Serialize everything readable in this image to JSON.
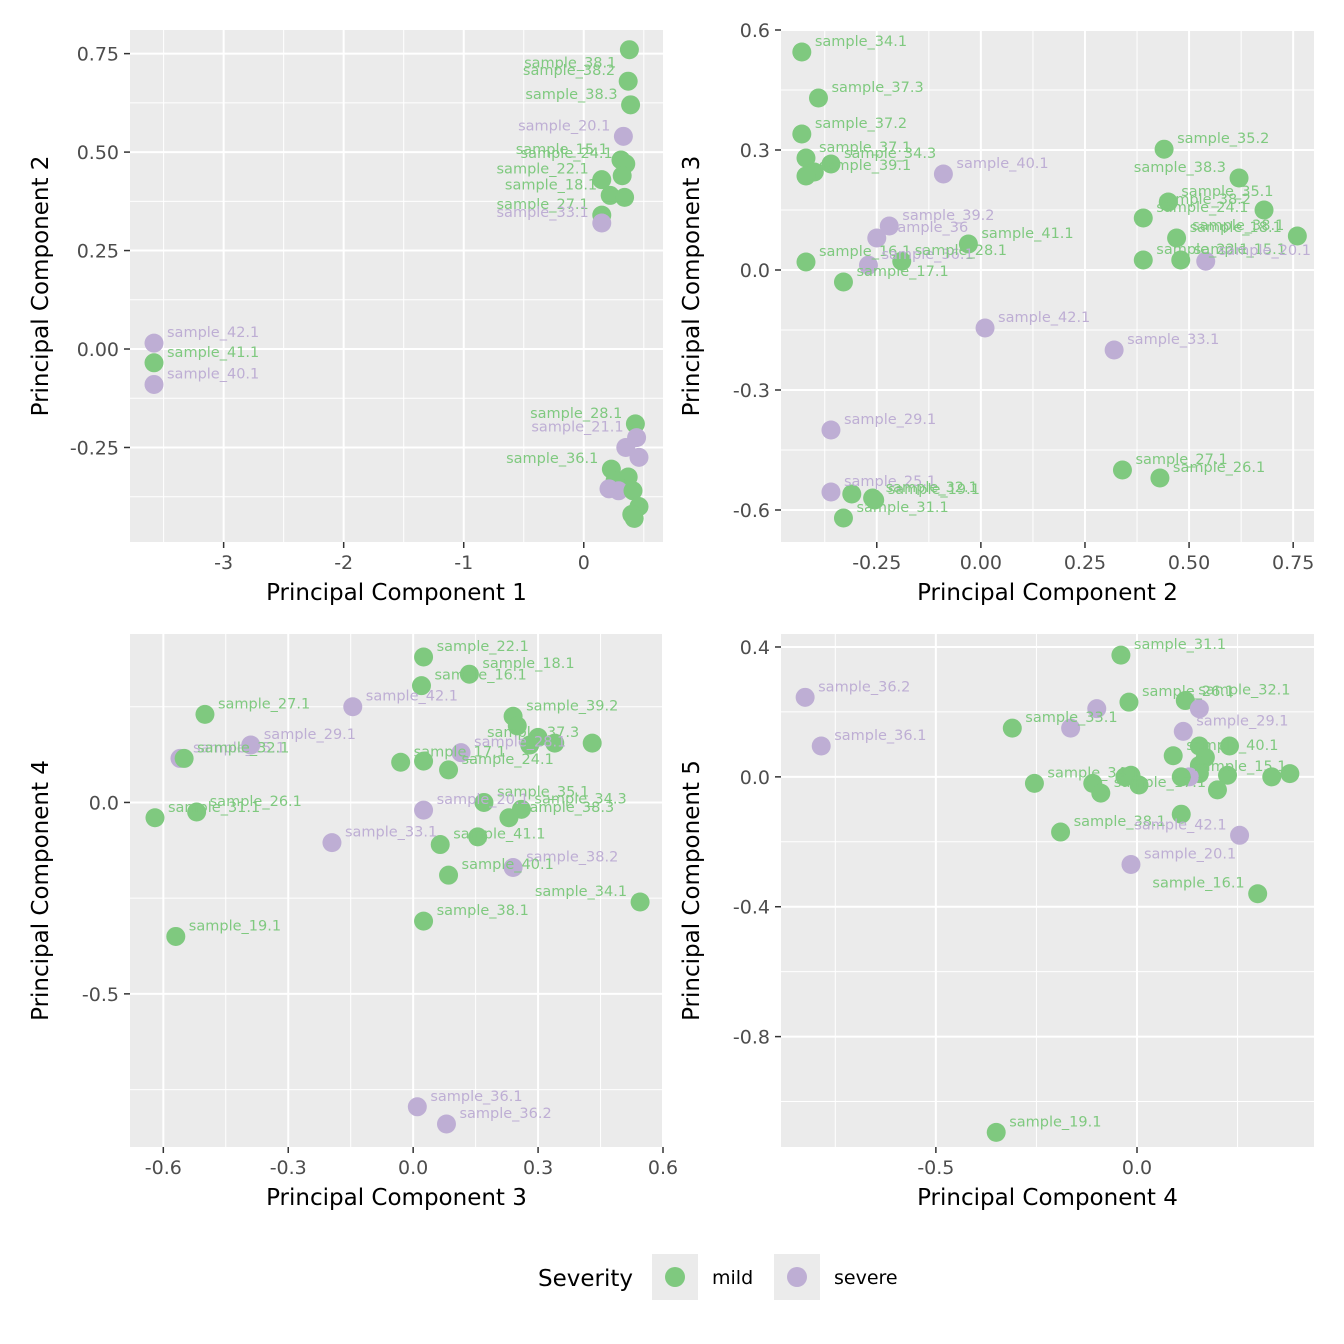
{
  "colors": {
    "mild": "#7fc97f",
    "severe": "#beaed4",
    "panel_bg": "#ebebeb",
    "grid": "#ffffff"
  },
  "legend": {
    "title": "Severity",
    "items": [
      {
        "key": "mild",
        "label": "mild"
      },
      {
        "key": "severe",
        "label": "severe"
      }
    ]
  },
  "chart_data": [
    {
      "type": "scatter",
      "xlabel": "Principal Component 1",
      "ylabel": "Principal Component 2",
      "xlim": [
        -3.78,
        0.66
      ],
      "ylim": [
        -0.49,
        0.81
      ],
      "xticks": [
        -3,
        -2,
        -1,
        0
      ],
      "xtick_labels": [
        "-3",
        "-2",
        "-1",
        "0"
      ],
      "yticks": [
        -0.25,
        0.0,
        0.25,
        0.5,
        0.75
      ],
      "ytick_labels": [
        "-0.25",
        "0.00",
        "0.25",
        "0.50",
        "0.75"
      ],
      "points": [
        {
          "x": 0.38,
          "y": 0.76,
          "g": "mild",
          "label": "sample_38.1"
        },
        {
          "x": 0.37,
          "y": 0.68,
          "g": "mild",
          "label": "sample_38.2"
        },
        {
          "x": 0.39,
          "y": 0.62,
          "g": "mild",
          "label": "sample_38.3"
        },
        {
          "x": 0.33,
          "y": 0.54,
          "g": "severe",
          "label": "sample_20.1"
        },
        {
          "x": 0.31,
          "y": 0.48,
          "g": "mild",
          "label": "sample_15.1"
        },
        {
          "x": 0.35,
          "y": 0.47,
          "g": "mild",
          "label": "sample_24.1"
        },
        {
          "x": 0.32,
          "y": 0.44,
          "g": "mild",
          "label": ""
        },
        {
          "x": 0.15,
          "y": 0.43,
          "g": "mild",
          "label": "sample_22.1"
        },
        {
          "x": 0.22,
          "y": 0.39,
          "g": "mild",
          "label": "sample_18.1"
        },
        {
          "x": 0.34,
          "y": 0.385,
          "g": "mild",
          "label": ""
        },
        {
          "x": 0.15,
          "y": 0.34,
          "g": "mild",
          "label": "sample_27.1"
        },
        {
          "x": 0.15,
          "y": 0.32,
          "g": "severe",
          "label": "sample_33.1"
        },
        {
          "x": -3.58,
          "y": 0.015,
          "g": "severe",
          "label": "sample_42.1"
        },
        {
          "x": -3.58,
          "y": -0.035,
          "g": "mild",
          "label": "sample_41.1"
        },
        {
          "x": -3.58,
          "y": -0.09,
          "g": "severe",
          "label": "sample_40.1"
        },
        {
          "x": 0.43,
          "y": -0.19,
          "g": "mild",
          "label": "sample_28.1"
        },
        {
          "x": 0.44,
          "y": -0.225,
          "g": "severe",
          "label": "sample_21.1"
        },
        {
          "x": 0.35,
          "y": -0.25,
          "g": "severe",
          "label": ""
        },
        {
          "x": 0.46,
          "y": -0.275,
          "g": "severe",
          "label": ""
        },
        {
          "x": 0.23,
          "y": -0.305,
          "g": "mild",
          "label": "sample_36.1"
        },
        {
          "x": 0.37,
          "y": -0.325,
          "g": "mild",
          "label": ""
        },
        {
          "x": 0.26,
          "y": -0.335,
          "g": "mild",
          "label": ""
        },
        {
          "x": 0.21,
          "y": -0.355,
          "g": "severe",
          "label": ""
        },
        {
          "x": 0.29,
          "y": -0.36,
          "g": "severe",
          "label": ""
        },
        {
          "x": 0.41,
          "y": -0.36,
          "g": "mild",
          "label": ""
        },
        {
          "x": 0.46,
          "y": -0.4,
          "g": "mild",
          "label": ""
        },
        {
          "x": 0.4,
          "y": -0.42,
          "g": "mild",
          "label": ""
        },
        {
          "x": 0.42,
          "y": -0.43,
          "g": "mild",
          "label": ""
        }
      ]
    },
    {
      "type": "scatter",
      "xlabel": "Principal Component 2",
      "ylabel": "Principal Component 3",
      "xlim": [
        -0.48,
        0.8
      ],
      "ylim": [
        -0.68,
        0.6
      ],
      "xticks": [
        -0.25,
        0.0,
        0.25,
        0.5,
        0.75
      ],
      "xtick_labels": [
        "-0.25",
        "0.00",
        "0.25",
        "0.50",
        "0.75"
      ],
      "yticks": [
        -0.6,
        -0.3,
        0.0,
        0.3,
        0.6
      ],
      "ytick_labels": [
        "-0.6",
        "-0.3",
        "0.0",
        "0.3",
        "0.6"
      ],
      "points": [
        {
          "x": -0.43,
          "y": 0.545,
          "g": "mild",
          "label": "sample_34.1"
        },
        {
          "x": -0.39,
          "y": 0.43,
          "g": "mild",
          "label": "sample_37.3"
        },
        {
          "x": -0.43,
          "y": 0.34,
          "g": "mild",
          "label": "sample_37.2"
        },
        {
          "x": -0.42,
          "y": 0.28,
          "g": "mild",
          "label": "sample_37.1"
        },
        {
          "x": -0.36,
          "y": 0.265,
          "g": "mild",
          "label": "sample_34.3"
        },
        {
          "x": -0.4,
          "y": 0.245,
          "g": "mild",
          "label": ""
        },
        {
          "x": -0.42,
          "y": 0.235,
          "g": "mild",
          "label": "sample_39.1"
        },
        {
          "x": -0.09,
          "y": 0.24,
          "g": "severe",
          "label": "sample_40.1"
        },
        {
          "x": -0.22,
          "y": 0.11,
          "g": "severe",
          "label": "sample_39.2"
        },
        {
          "x": -0.25,
          "y": 0.08,
          "g": "severe",
          "label": "sample_36"
        },
        {
          "x": -0.03,
          "y": 0.065,
          "g": "mild",
          "label": "sample_41.1"
        },
        {
          "x": -0.42,
          "y": 0.02,
          "g": "mild",
          "label": "sample_16.1"
        },
        {
          "x": -0.27,
          "y": 0.012,
          "g": "severe",
          "label": "sample_36.1"
        },
        {
          "x": -0.19,
          "y": 0.022,
          "g": "mild",
          "label": "sample_28.1"
        },
        {
          "x": -0.33,
          "y": -0.03,
          "g": "mild",
          "label": "sample_17.1"
        },
        {
          "x": 0.01,
          "y": -0.145,
          "g": "severe",
          "label": "sample_42.1"
        },
        {
          "x": 0.32,
          "y": -0.2,
          "g": "severe",
          "label": "sample_33.1"
        },
        {
          "x": 0.44,
          "y": 0.302,
          "g": "mild",
          "label": "sample_35.2"
        },
        {
          "x": 0.62,
          "y": 0.23,
          "g": "mild",
          "label": "sample_38.3"
        },
        {
          "x": 0.45,
          "y": 0.17,
          "g": "mild",
          "label": "sample_35.1"
        },
        {
          "x": 0.68,
          "y": 0.15,
          "g": "mild",
          "label": "sample_38.2"
        },
        {
          "x": 0.39,
          "y": 0.13,
          "g": "mild",
          "label": "sample_24.1"
        },
        {
          "x": 0.76,
          "y": 0.085,
          "g": "mild",
          "label": "sample_38.1"
        },
        {
          "x": 0.47,
          "y": 0.08,
          "g": "mild",
          "label": "sample_18.1"
        },
        {
          "x": 0.39,
          "y": 0.025,
          "g": "mild",
          "label": "sample_22.1"
        },
        {
          "x": 0.48,
          "y": 0.025,
          "g": "mild",
          "label": "sample_15.1"
        },
        {
          "x": 0.54,
          "y": 0.022,
          "g": "severe",
          "label": "sample_20.1"
        },
        {
          "x": -0.36,
          "y": -0.4,
          "g": "severe",
          "label": "sample_29.1"
        },
        {
          "x": -0.36,
          "y": -0.555,
          "g": "severe",
          "label": "sample_25.1"
        },
        {
          "x": -0.31,
          "y": -0.56,
          "g": "mild",
          "label": ""
        },
        {
          "x": -0.26,
          "y": -0.57,
          "g": "mild",
          "label": "sample_32.1"
        },
        {
          "x": -0.33,
          "y": -0.62,
          "g": "mild",
          "label": "sample_31.1"
        },
        {
          "x": -0.255,
          "y": -0.575,
          "g": "mild",
          "label": "sample_19.1"
        },
        {
          "x": 0.34,
          "y": -0.5,
          "g": "mild",
          "label": "sample_27.1"
        },
        {
          "x": 0.43,
          "y": -0.52,
          "g": "mild",
          "label": "sample_26.1"
        }
      ]
    },
    {
      "type": "scatter",
      "xlabel": "Principal Component 3",
      "ylabel": "Principal Component 4",
      "xlim": [
        -0.68,
        0.6
      ],
      "ylim": [
        -0.9,
        0.44
      ],
      "xticks": [
        -0.6,
        -0.3,
        0.0,
        0.3,
        0.6
      ],
      "xtick_labels": [
        "-0.6",
        "-0.3",
        "0.0",
        "0.3",
        "0.6"
      ],
      "yticks": [
        -0.5,
        0.0
      ],
      "ytick_labels": [
        "-0.5",
        "0.0"
      ],
      "points": [
        {
          "x": 0.025,
          "y": 0.38,
          "g": "mild",
          "label": "sample_22.1"
        },
        {
          "x": 0.135,
          "y": 0.335,
          "g": "mild",
          "label": "sample_18.1"
        },
        {
          "x": 0.02,
          "y": 0.305,
          "g": "mild",
          "label": "sample_16.1"
        },
        {
          "x": -0.5,
          "y": 0.23,
          "g": "mild",
          "label": "sample_27.1"
        },
        {
          "x": -0.145,
          "y": 0.25,
          "g": "severe",
          "label": "sample_42.1"
        },
        {
          "x": 0.24,
          "y": 0.225,
          "g": "mild",
          "label": "sample_39.2"
        },
        {
          "x": 0.25,
          "y": 0.2,
          "g": "mild",
          "label": ""
        },
        {
          "x": 0.3,
          "y": 0.17,
          "g": "mild",
          "label": ""
        },
        {
          "x": 0.34,
          "y": 0.155,
          "g": "mild",
          "label": ""
        },
        {
          "x": 0.28,
          "y": 0.15,
          "g": "mild",
          "label": ""
        },
        {
          "x": 0.43,
          "y": 0.155,
          "g": "mild",
          "label": "sample_37.3"
        },
        {
          "x": -0.39,
          "y": 0.15,
          "g": "severe",
          "label": "sample_29.1"
        },
        {
          "x": 0.115,
          "y": 0.13,
          "g": "severe",
          "label": "sample_28.1"
        },
        {
          "x": -0.56,
          "y": 0.115,
          "g": "severe",
          "label": "sample_25.1"
        },
        {
          "x": -0.55,
          "y": 0.115,
          "g": "mild",
          "label": "sample_32.1"
        },
        {
          "x": -0.03,
          "y": 0.105,
          "g": "mild",
          "label": "sample_17.1"
        },
        {
          "x": 0.025,
          "y": 0.108,
          "g": "mild",
          "label": ""
        },
        {
          "x": 0.085,
          "y": 0.085,
          "g": "mild",
          "label": "sample_24.1"
        },
        {
          "x": 0.17,
          "y": 0.0,
          "g": "mild",
          "label": "sample_35.1"
        },
        {
          "x": 0.26,
          "y": -0.018,
          "g": "mild",
          "label": "sample_34.3"
        },
        {
          "x": 0.025,
          "y": -0.02,
          "g": "severe",
          "label": "sample_20.1"
        },
        {
          "x": 0.23,
          "y": -0.04,
          "g": "mild",
          "label": "sample_38.3"
        },
        {
          "x": -0.52,
          "y": -0.025,
          "g": "mild",
          "label": "sample_26.1"
        },
        {
          "x": -0.62,
          "y": -0.04,
          "g": "mild",
          "label": "sample_31.1"
        },
        {
          "x": 0.155,
          "y": -0.09,
          "g": "mild",
          "label": ""
        },
        {
          "x": -0.195,
          "y": -0.105,
          "g": "severe",
          "label": "sample_33.1"
        },
        {
          "x": 0.065,
          "y": -0.11,
          "g": "mild",
          "label": "sample_41.1"
        },
        {
          "x": 0.24,
          "y": -0.17,
          "g": "severe",
          "label": "sample_38.2"
        },
        {
          "x": 0.085,
          "y": -0.19,
          "g": "mild",
          "label": "sample_40.1"
        },
        {
          "x": 0.545,
          "y": -0.26,
          "g": "mild",
          "label": "sample_34.1"
        },
        {
          "x": 0.025,
          "y": -0.31,
          "g": "mild",
          "label": "sample_38.1"
        },
        {
          "x": -0.57,
          "y": -0.35,
          "g": "mild",
          "label": "sample_19.1"
        },
        {
          "x": 0.01,
          "y": -0.795,
          "g": "severe",
          "label": "sample_36.1"
        },
        {
          "x": 0.08,
          "y": -0.84,
          "g": "severe",
          "label": "sample_36.2"
        }
      ]
    },
    {
      "type": "scatter",
      "xlabel": "Principal Component 4",
      "ylabel": "Principal Component 5",
      "xlim": [
        -0.885,
        0.44
      ],
      "ylim": [
        -1.14,
        0.44
      ],
      "xticks": [
        -0.5,
        0.0
      ],
      "xtick_labels": [
        "-0.5",
        "0.0"
      ],
      "yticks": [
        -0.8,
        -0.4,
        0.0,
        0.4
      ],
      "ytick_labels": [
        "-0.8",
        "-0.4",
        "0.0",
        "0.4"
      ],
      "points": [
        {
          "x": -0.04,
          "y": 0.375,
          "g": "mild",
          "label": "sample_31.1"
        },
        {
          "x": -0.825,
          "y": 0.245,
          "g": "severe",
          "label": "sample_36.2"
        },
        {
          "x": -0.02,
          "y": 0.23,
          "g": "mild",
          "label": "sample_26.1"
        },
        {
          "x": 0.12,
          "y": 0.235,
          "g": "mild",
          "label": "sample_32.1"
        },
        {
          "x": -0.1,
          "y": 0.21,
          "g": "severe",
          "label": ""
        },
        {
          "x": 0.155,
          "y": 0.21,
          "g": "severe",
          "label": ""
        },
        {
          "x": -0.31,
          "y": 0.15,
          "g": "mild",
          "label": "sample_33.1"
        },
        {
          "x": -0.165,
          "y": 0.15,
          "g": "severe",
          "label": ""
        },
        {
          "x": 0.115,
          "y": 0.14,
          "g": "severe",
          "label": "sample_29.1"
        },
        {
          "x": -0.785,
          "y": 0.095,
          "g": "severe",
          "label": "sample_36.1"
        },
        {
          "x": 0.155,
          "y": 0.095,
          "g": "mild",
          "label": ""
        },
        {
          "x": 0.23,
          "y": 0.095,
          "g": "mild",
          "label": ""
        },
        {
          "x": 0.09,
          "y": 0.065,
          "g": "mild",
          "label": "sample_40.1"
        },
        {
          "x": 0.17,
          "y": 0.06,
          "g": "mild",
          "label": ""
        },
        {
          "x": 0.155,
          "y": 0.035,
          "g": "mild",
          "label": ""
        },
        {
          "x": 0.225,
          "y": 0.005,
          "g": "mild",
          "label": ""
        },
        {
          "x": 0.155,
          "y": 0.01,
          "g": "mild",
          "label": ""
        },
        {
          "x": 0.13,
          "y": 0.0,
          "g": "severe",
          "label": ""
        },
        {
          "x": 0.11,
          "y": 0.0,
          "g": "mild",
          "label": "sample_15.1"
        },
        {
          "x": -0.03,
          "y": 0.0,
          "g": "mild",
          "label": ""
        },
        {
          "x": -0.015,
          "y": 0.005,
          "g": "mild",
          "label": ""
        },
        {
          "x": 0.335,
          "y": 0.0,
          "g": "mild",
          "label": ""
        },
        {
          "x": 0.38,
          "y": 0.01,
          "g": "mild",
          "label": ""
        },
        {
          "x": -0.255,
          "y": -0.02,
          "g": "mild",
          "label": "sample_34.1"
        },
        {
          "x": -0.11,
          "y": -0.02,
          "g": "mild",
          "label": ""
        },
        {
          "x": 0.005,
          "y": -0.025,
          "g": "mild",
          "label": ""
        },
        {
          "x": -0.09,
          "y": -0.05,
          "g": "mild",
          "label": "sample_17.1"
        },
        {
          "x": 0.2,
          "y": -0.04,
          "g": "mild",
          "label": ""
        },
        {
          "x": 0.11,
          "y": -0.115,
          "g": "mild",
          "label": ""
        },
        {
          "x": -0.19,
          "y": -0.17,
          "g": "mild",
          "label": "sample_38.1"
        },
        {
          "x": 0.255,
          "y": -0.18,
          "g": "severe",
          "label": "sample_42.1"
        },
        {
          "x": -0.015,
          "y": -0.27,
          "g": "severe",
          "label": "sample_20.1"
        },
        {
          "x": 0.3,
          "y": -0.36,
          "g": "mild",
          "label": "sample_16.1"
        },
        {
          "x": -0.35,
          "y": -1.095,
          "g": "mild",
          "label": "sample_19.1"
        }
      ]
    }
  ]
}
